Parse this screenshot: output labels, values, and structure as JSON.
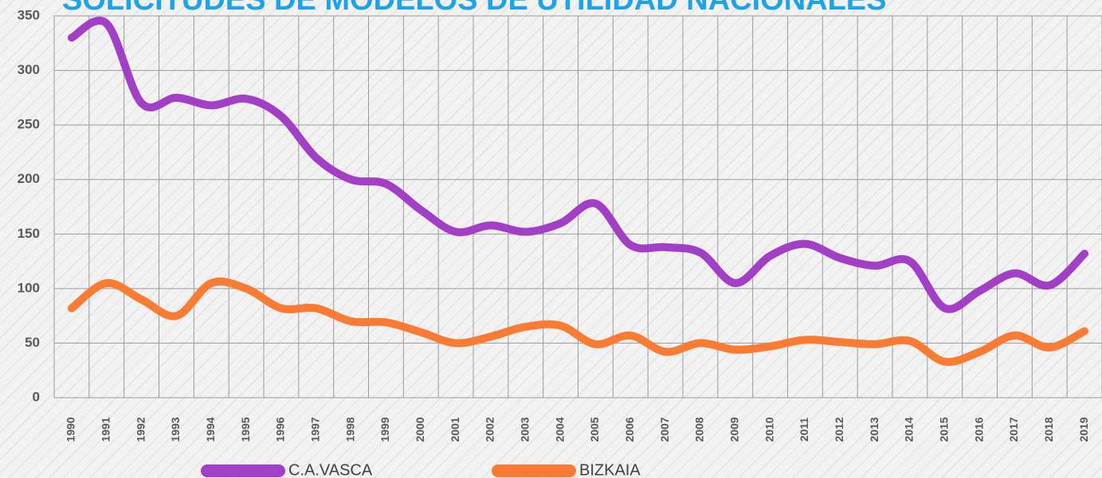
{
  "chart_data": {
    "type": "line",
    "title": "SOLICITUDES DE MODELOS DE UTILIDAD NACIONALES",
    "categories": [
      "1990",
      "1991",
      "1992",
      "1993",
      "1994",
      "1995",
      "1996",
      "1997",
      "1998",
      "1999",
      "2000",
      "2001",
      "2002",
      "2003",
      "2004",
      "2005",
      "2006",
      "2007",
      "2008",
      "2009",
      "2010",
      "2011",
      "2012",
      "2013",
      "2014",
      "2015",
      "2016",
      "2017",
      "2018",
      "2019"
    ],
    "series": [
      {
        "name": "C.A.VASCA",
        "color": "#a23fc6",
        "values": [
          330,
          343,
          270,
          275,
          268,
          274,
          258,
          220,
          200,
          196,
          172,
          152,
          158,
          152,
          160,
          178,
          140,
          138,
          133,
          105,
          130,
          141,
          128,
          121,
          125,
          82,
          98,
          114,
          103,
          132
        ]
      },
      {
        "name": "BIZKAIA",
        "color": "#f97b34",
        "values": [
          82,
          105,
          90,
          75,
          105,
          100,
          82,
          82,
          70,
          69,
          60,
          50,
          56,
          65,
          66,
          49,
          57,
          42,
          50,
          44,
          47,
          53,
          51,
          49,
          52,
          33,
          42,
          57,
          46,
          61
        ]
      }
    ],
    "ylim": [
      0,
      350
    ],
    "yticks": [
      0,
      50,
      100,
      150,
      200,
      250,
      300,
      350
    ],
    "grid": true,
    "legend": "bottom"
  }
}
